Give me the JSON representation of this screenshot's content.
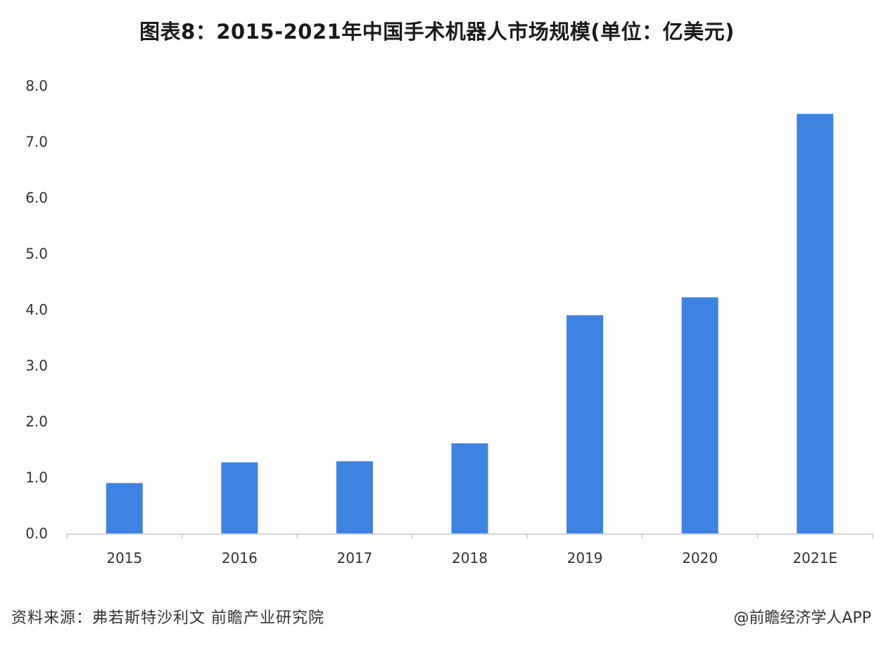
{
  "title": "图表8：2015-2021年中国手术机器人市场规模(单位：亿美元)",
  "source": "资料来源：弗若斯特沙利文 前瞻产业研究院",
  "app_credit": "@前瞻经济学人APP",
  "colors": {
    "bar": "#3f83e2",
    "axis": "#c8c8c8",
    "text": "#333333"
  },
  "chart_data": {
    "type": "bar",
    "title": "图表8：2015-2021年中国手术机器人市场规模(单位：亿美元)",
    "xlabel": "",
    "ylabel": "",
    "categories": [
      "2015",
      "2016",
      "2017",
      "2018",
      "2019",
      "2020",
      "2021E"
    ],
    "values": [
      0.9,
      1.27,
      1.29,
      1.61,
      3.9,
      4.22,
      7.5
    ],
    "ylim": [
      0,
      8
    ],
    "yticks": [
      "0.0",
      "1.0",
      "2.0",
      "3.0",
      "4.0",
      "5.0",
      "6.0",
      "7.0",
      "8.0"
    ],
    "grid": false,
    "legend": "none"
  }
}
